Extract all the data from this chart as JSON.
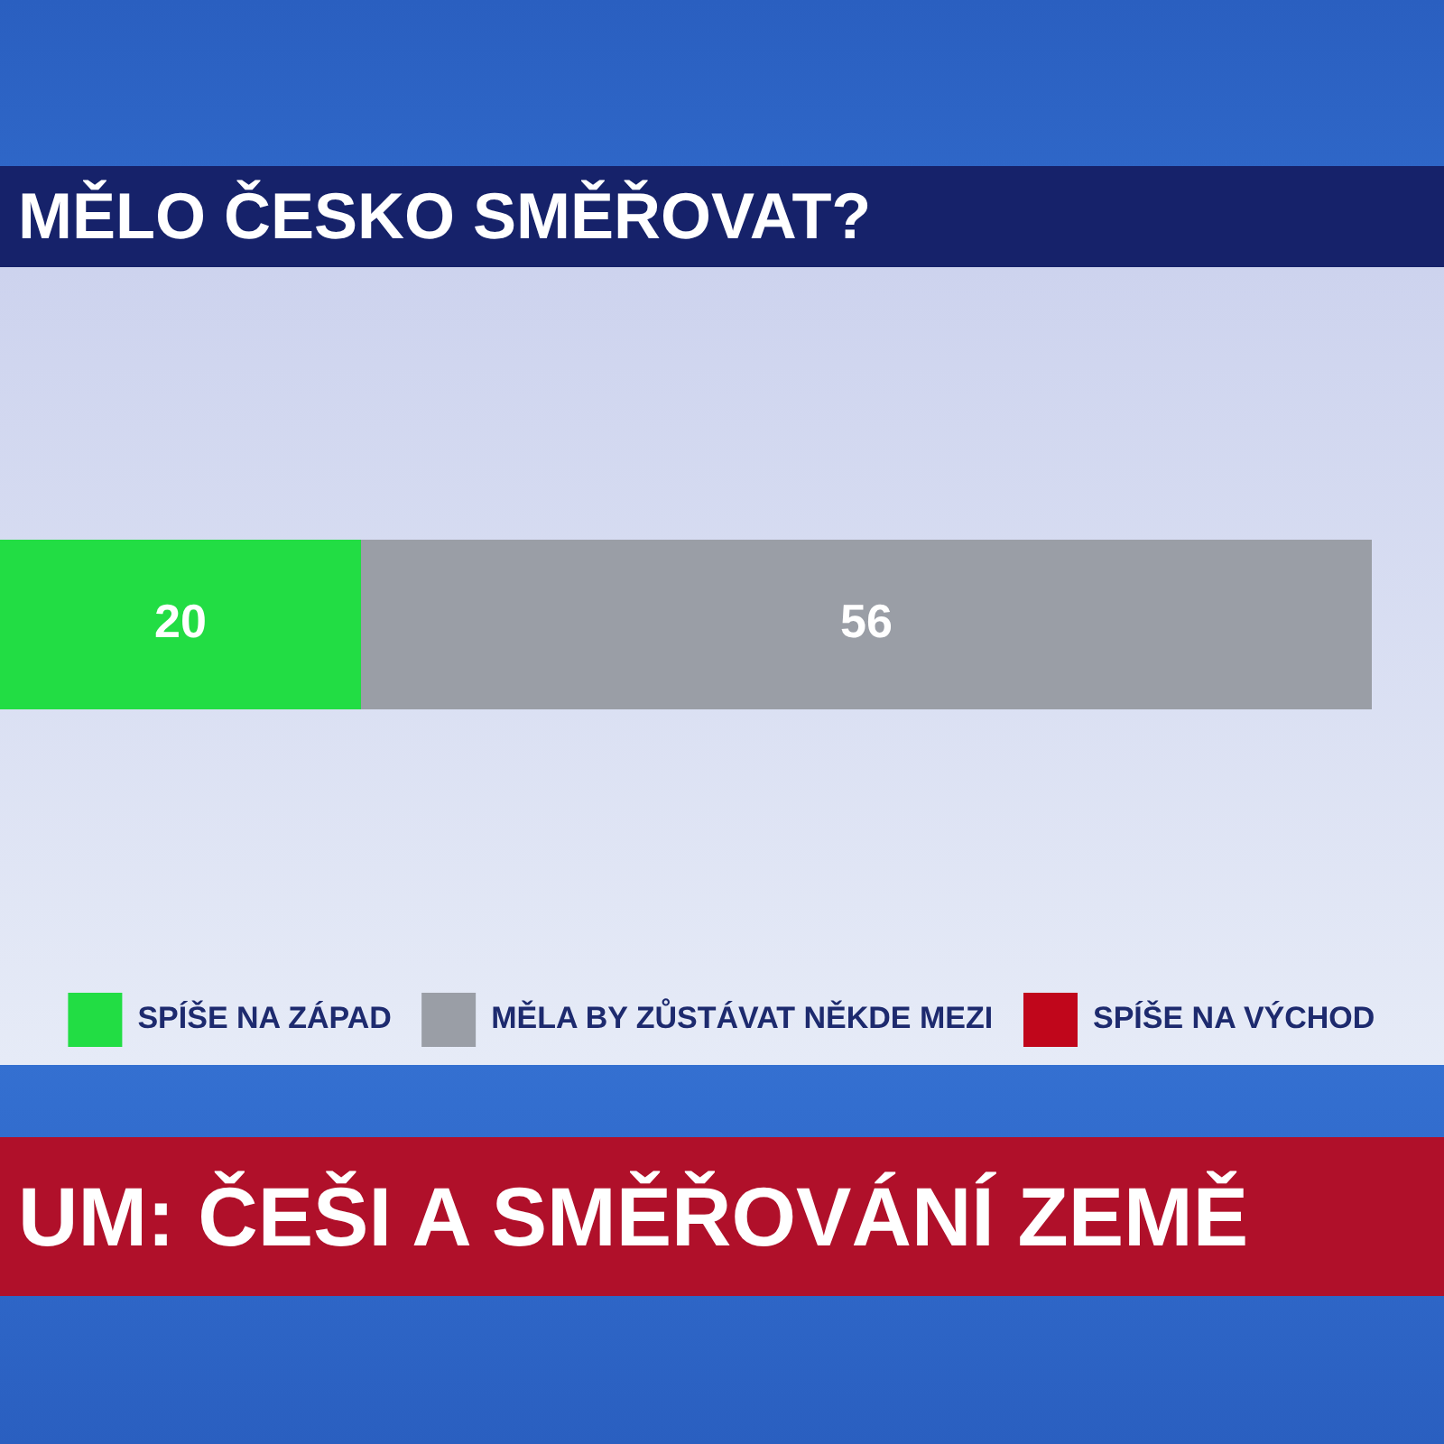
{
  "chart_data": {
    "type": "bar",
    "title": "MĚLO ČESKO SMĚŘOVAT?",
    "orientation": "horizontal",
    "stacked": true,
    "categories": [
      null
    ],
    "series": [
      {
        "name": "SPÍŠE NA ZÁPAD",
        "color": "#22dd44",
        "values": [
          20
        ]
      },
      {
        "name": "MĚLA BY ZŮSTÁVAT NĚKDE MEZI",
        "color": "#9a9ea6",
        "values": [
          56
        ]
      },
      {
        "name": "SPÍŠE NA VÝCHOD",
        "color": "#c0061b",
        "values": [
          null
        ]
      }
    ],
    "data_labels": true,
    "legend": "bottom",
    "annotations": [
      "UM: ČEŠI A SMĚŘOVÁNÍ ZEMĚ"
    ]
  }
}
